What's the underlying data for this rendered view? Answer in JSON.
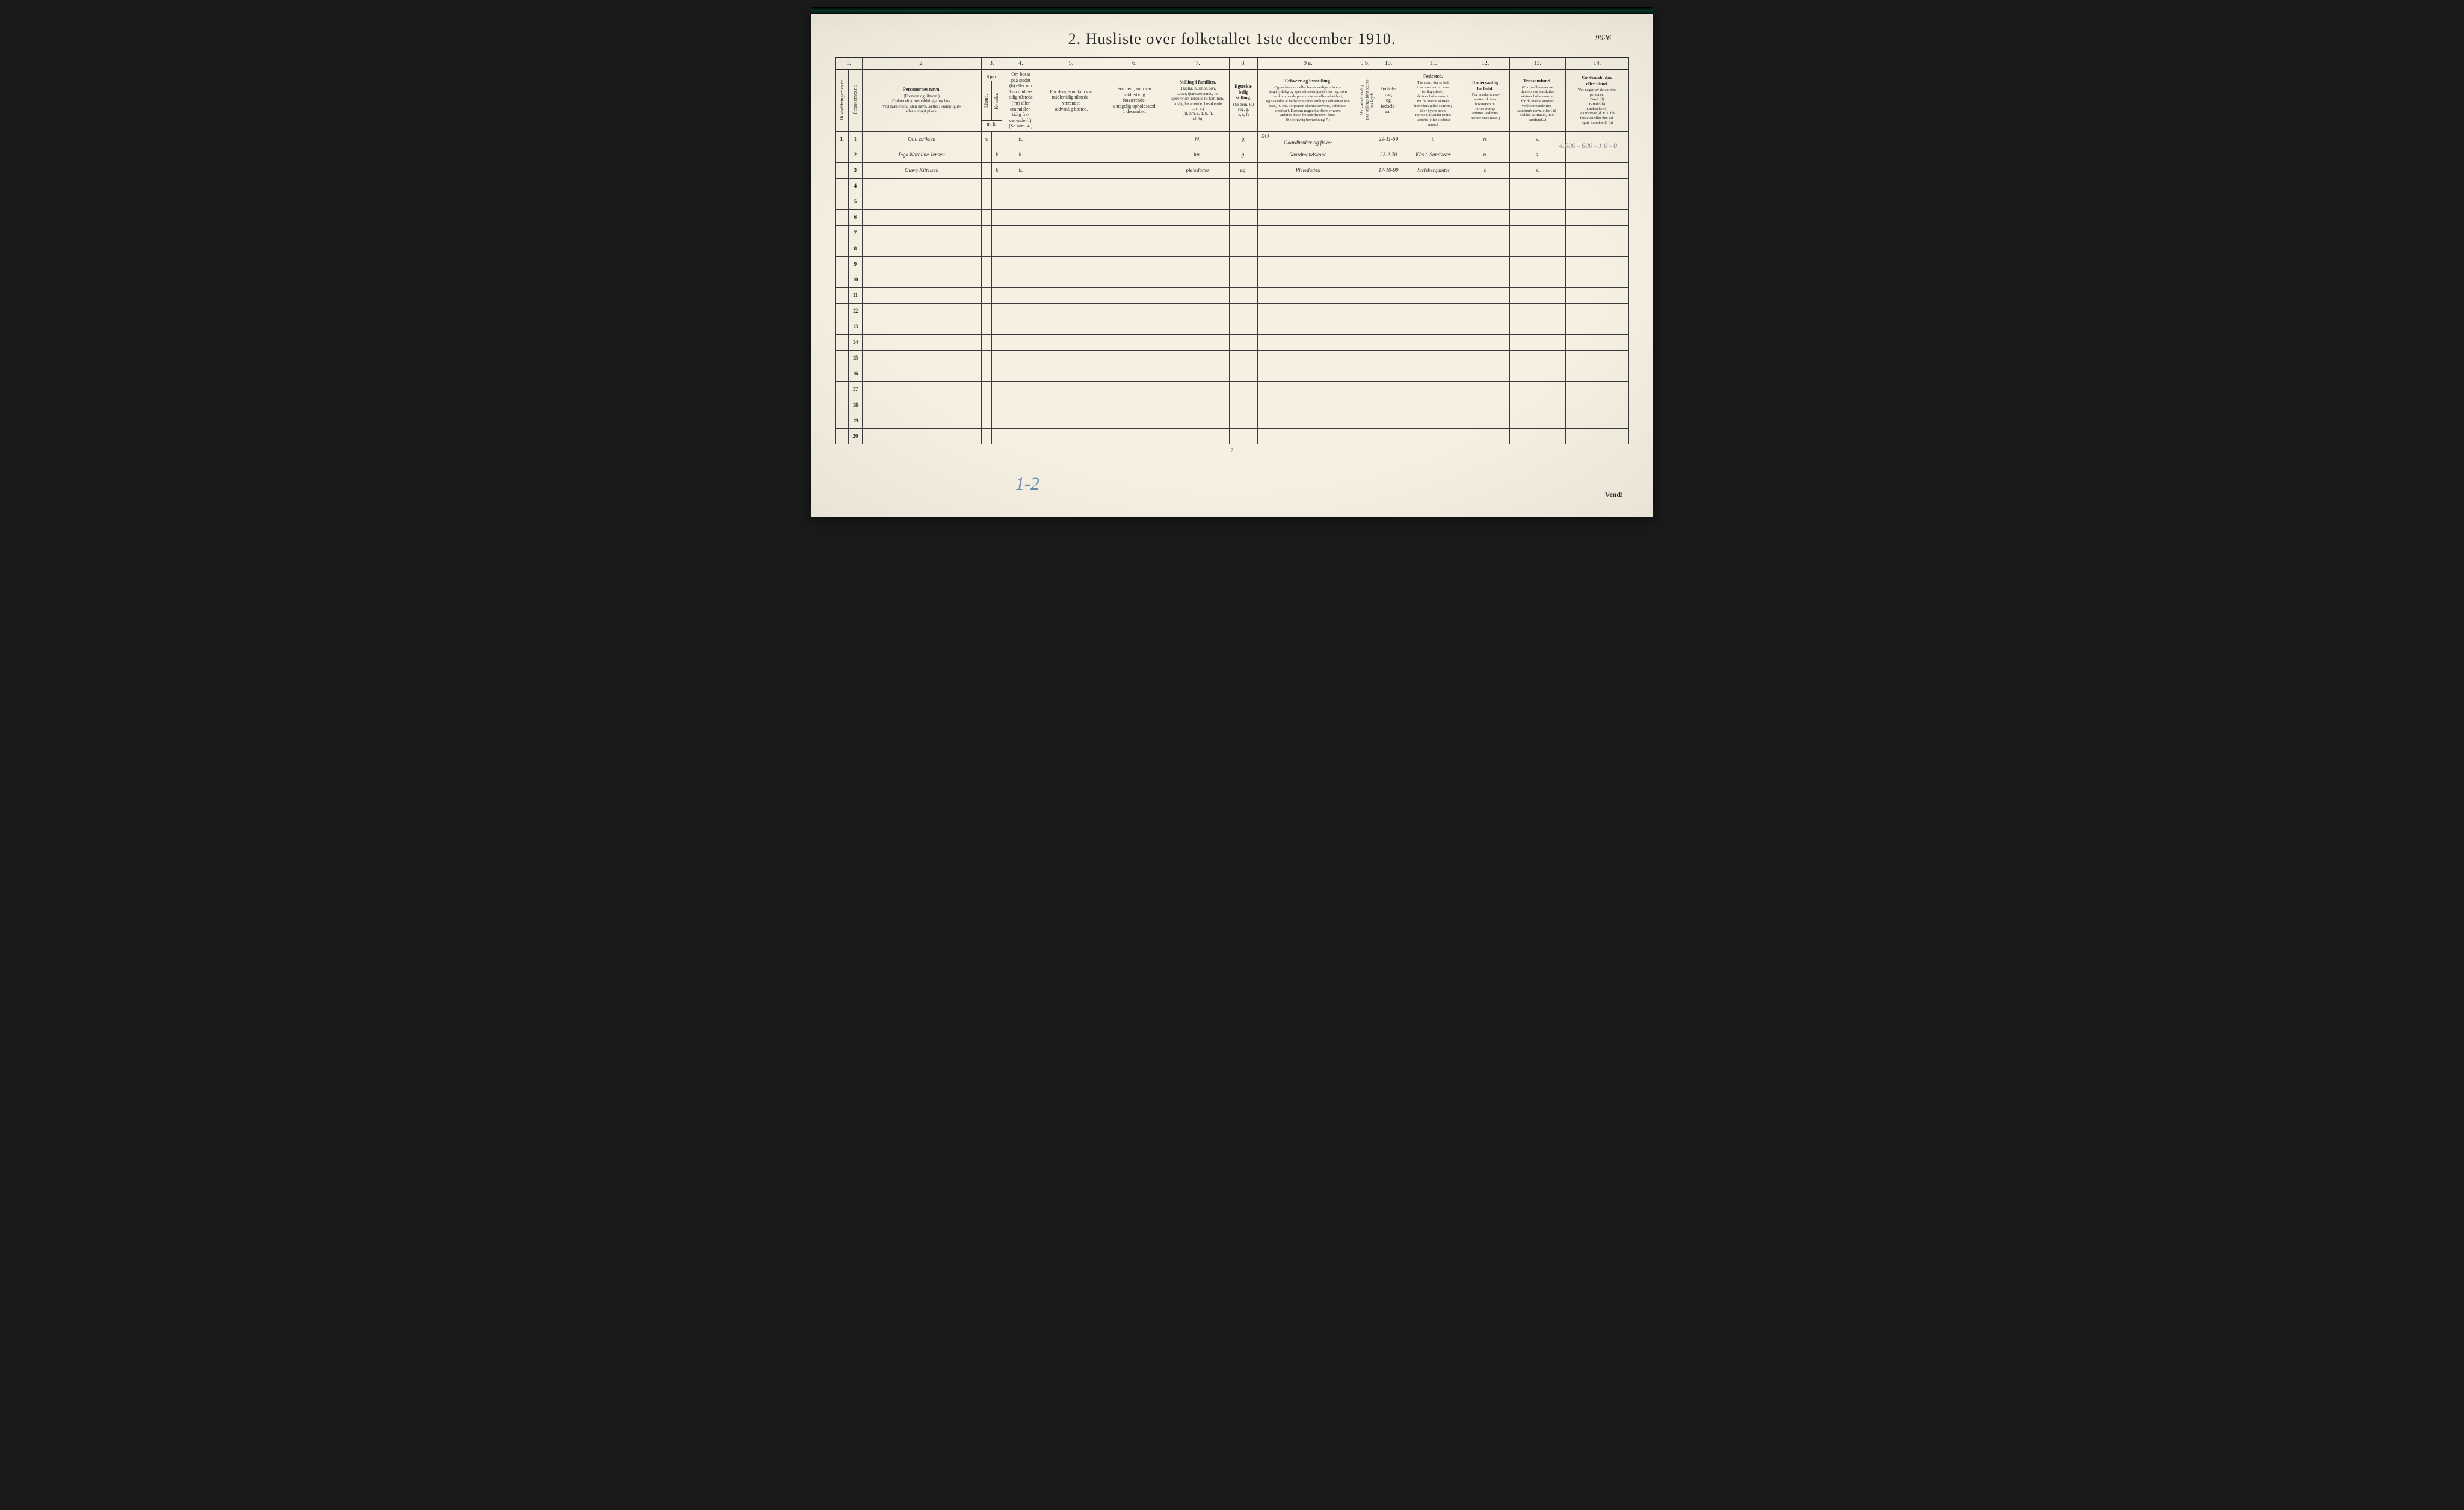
{
  "page_number_tr": "9026",
  "title": "2.  Husliste over folketallet 1ste december 1910.",
  "footer_page": "2",
  "vend": "Vend!",
  "blue_mark": "1-2",
  "pencil_annotation": "4.000 - 600 - 1\n0 - 0",
  "column_numbers": [
    "1.",
    "2.",
    "3.",
    "4.",
    "5.",
    "6.",
    "7.",
    "8.",
    "9 a.",
    "9 b.",
    "10.",
    "11.",
    "12.",
    "13.",
    "14."
  ],
  "headers": {
    "c1a": "Husholdningernes nr.",
    "c1b": "Personernes nr.",
    "c2_main": "Personernes navn.",
    "c2_sub": "(Fornavn og tilnavn.)\nOrdnet efter husholdninger og hus.\nVed barn endnu uten navn, sættes: «udøpt gut»\neller «udøpt pike».",
    "c3_main": "Kjøn.",
    "c3a": "Mænd.",
    "c3b": "Kvinder.",
    "c3_sub": "m. k.",
    "c4": "Om bosat\npaa stedet\n(b) eller om\nkun midler-\ntidig tilstede\n(mt) eller\nom midler-\ntidig fra-\nværende (f).\n(Se bem. 4.)",
    "c5": "For dem, som kun var\nmidlertidig tilstede-\nværende:\nsedvanlig bosted.",
    "c6": "For dem, som var\nmidlertidig\nfraværende:\nantagelig opholdssted\n1 december.",
    "c7_main": "Stilling i familien.",
    "c7_sub": "(Husfar, husmor, søn,\ndatter, tjenestetyende, lo-\nsjererende hørende til familien,\nenslig losjerende, besøkende\no. s. v.)\n(hf, hm, s, d, tj, fl,\nel, b)",
    "c8_main": "Egteska-\nbelig\nstilling.",
    "c8_sub": "(Se bem. 6.)\n(ug, g,\ne, s, f)",
    "c9a_main": "Erhverv og livsstilling.",
    "c9a_sub": "Ogsaa husmors eller barns særlige erhverv.\nAngi tydelig og specielt næringsvei eller fag, som\nvedkommende person utøver eller arbeider i,\nog saaledes at vedkommendes stilling i erhvervet kan\nsees, (f. eks. forpagter, skomakersvend, cellulose-\narbeider). Dersom nogen har flere erhverv,\nanføres disse, hovederhvervet først.\n(Se forøvrig bemerkning 7.)",
    "c9b": "Hvis arbeidsledig\npaa tællingstiden sættes\nher kryds.",
    "c10": "Fødsels-\ndag\nog\nfødsels-\naar.",
    "c11_main": "Fødested.",
    "c11_sub": "(For dem, der er født\ni samme herred som\ntællingsstedet,\nskrives bokstaven: t;\nfor de øvrige skrives\nherredets (eller sognets)\neller byens navn.\nFor de i utlandet fødte:\nlandets (eller stedets)\nnavn.)",
    "c12_main": "Undersaatlig\nforhold.",
    "c12_sub": "(For norske under-\nsaatter skrives\nbokstaven: n;\nfor de øvrige\nanføres vedkom-\nmende stats navn.)",
    "c13_main": "Trossamfund.",
    "c13_sub": "(For medlemmer av\nden norske statskirke\nskrives bokstaven: s;\nfor de øvrige anføres\nvedkommende tros-\nsamfunds navn, eller i til-\nfælde: «Uttraadt, intet\nsamfund».)",
    "c14_main": "Sindssvak, døv\neller blind.",
    "c14_sub": "Var nogen av de anførte\npersoner:\nDøv?        (d)\nBlind?      (b)\nSindssyk?  (s)\nAandssvak (d. v. s. fra\nfødselen eller den tid-\nligste barndom)?  (a)"
  },
  "rows": [
    {
      "hnr": "1.",
      "pnr": "1",
      "name": "Otto Eriksen",
      "sex_m": "m",
      "sex_k": "",
      "bosat": "b.",
      "c5": "",
      "c6": "",
      "stilling": "hf.",
      "egte": "g.",
      "erhverv": "Gaardbruker og fisker",
      "xo": "XO",
      "fdate": "29-11-59",
      "fsted": "t.",
      "under": "n.",
      "tro": "s.",
      "c14": ""
    },
    {
      "hnr": "",
      "pnr": "2",
      "name": "Inga Karoline Jensen",
      "sex_m": "",
      "sex_k": "k",
      "bosat": "b.",
      "c5": "",
      "c6": "",
      "stilling": "hm.",
      "egte": "g.",
      "erhverv": "Gaardmandskone.",
      "xo": "",
      "fdate": "22-2-70",
      "fsted": "Kås t. Sandsvær",
      "under": "n.",
      "tro": "s.",
      "c14": ""
    },
    {
      "hnr": "",
      "pnr": "3",
      "name": "Olava Kittelsen",
      "sex_m": "",
      "sex_k": "k",
      "bosat": "b.",
      "c5": "",
      "c6": "",
      "stilling": "pleiedatter",
      "egte": "ug.",
      "erhverv": "Pleiedatter.",
      "xo": "",
      "fdate": "17-10-99",
      "fsted": "Jarlsbergamtet",
      "under": "n",
      "tro": "s.",
      "c14": ""
    },
    {
      "hnr": "",
      "pnr": "4",
      "name": "",
      "sex_m": "",
      "sex_k": "",
      "bosat": "",
      "c5": "",
      "c6": "",
      "stilling": "",
      "egte": "",
      "erhverv": "",
      "xo": "",
      "fdate": "",
      "fsted": "",
      "under": "",
      "tro": "",
      "c14": ""
    },
    {
      "hnr": "",
      "pnr": "5",
      "name": "",
      "sex_m": "",
      "sex_k": "",
      "bosat": "",
      "c5": "",
      "c6": "",
      "stilling": "",
      "egte": "",
      "erhverv": "",
      "xo": "",
      "fdate": "",
      "fsted": "",
      "under": "",
      "tro": "",
      "c14": ""
    },
    {
      "hnr": "",
      "pnr": "6",
      "name": "",
      "sex_m": "",
      "sex_k": "",
      "bosat": "",
      "c5": "",
      "c6": "",
      "stilling": "",
      "egte": "",
      "erhverv": "",
      "xo": "",
      "fdate": "",
      "fsted": "",
      "under": "",
      "tro": "",
      "c14": ""
    },
    {
      "hnr": "",
      "pnr": "7",
      "name": "",
      "sex_m": "",
      "sex_k": "",
      "bosat": "",
      "c5": "",
      "c6": "",
      "stilling": "",
      "egte": "",
      "erhverv": "",
      "xo": "",
      "fdate": "",
      "fsted": "",
      "under": "",
      "tro": "",
      "c14": ""
    },
    {
      "hnr": "",
      "pnr": "8",
      "name": "",
      "sex_m": "",
      "sex_k": "",
      "bosat": "",
      "c5": "",
      "c6": "",
      "stilling": "",
      "egte": "",
      "erhverv": "",
      "xo": "",
      "fdate": "",
      "fsted": "",
      "under": "",
      "tro": "",
      "c14": ""
    },
    {
      "hnr": "",
      "pnr": "9",
      "name": "",
      "sex_m": "",
      "sex_k": "",
      "bosat": "",
      "c5": "",
      "c6": "",
      "stilling": "",
      "egte": "",
      "erhverv": "",
      "xo": "",
      "fdate": "",
      "fsted": "",
      "under": "",
      "tro": "",
      "c14": ""
    },
    {
      "hnr": "",
      "pnr": "10",
      "name": "",
      "sex_m": "",
      "sex_k": "",
      "bosat": "",
      "c5": "",
      "c6": "",
      "stilling": "",
      "egte": "",
      "erhverv": "",
      "xo": "",
      "fdate": "",
      "fsted": "",
      "under": "",
      "tro": "",
      "c14": ""
    },
    {
      "hnr": "",
      "pnr": "11",
      "name": "",
      "sex_m": "",
      "sex_k": "",
      "bosat": "",
      "c5": "",
      "c6": "",
      "stilling": "",
      "egte": "",
      "erhverv": "",
      "xo": "",
      "fdate": "",
      "fsted": "",
      "under": "",
      "tro": "",
      "c14": ""
    },
    {
      "hnr": "",
      "pnr": "12",
      "name": "",
      "sex_m": "",
      "sex_k": "",
      "bosat": "",
      "c5": "",
      "c6": "",
      "stilling": "",
      "egte": "",
      "erhverv": "",
      "xo": "",
      "fdate": "",
      "fsted": "",
      "under": "",
      "tro": "",
      "c14": ""
    },
    {
      "hnr": "",
      "pnr": "13",
      "name": "",
      "sex_m": "",
      "sex_k": "",
      "bosat": "",
      "c5": "",
      "c6": "",
      "stilling": "",
      "egte": "",
      "erhverv": "",
      "xo": "",
      "fdate": "",
      "fsted": "",
      "under": "",
      "tro": "",
      "c14": ""
    },
    {
      "hnr": "",
      "pnr": "14",
      "name": "",
      "sex_m": "",
      "sex_k": "",
      "bosat": "",
      "c5": "",
      "c6": "",
      "stilling": "",
      "egte": "",
      "erhverv": "",
      "xo": "",
      "fdate": "",
      "fsted": "",
      "under": "",
      "tro": "",
      "c14": ""
    },
    {
      "hnr": "",
      "pnr": "15",
      "name": "",
      "sex_m": "",
      "sex_k": "",
      "bosat": "",
      "c5": "",
      "c6": "",
      "stilling": "",
      "egte": "",
      "erhverv": "",
      "xo": "",
      "fdate": "",
      "fsted": "",
      "under": "",
      "tro": "",
      "c14": ""
    },
    {
      "hnr": "",
      "pnr": "16",
      "name": "",
      "sex_m": "",
      "sex_k": "",
      "bosat": "",
      "c5": "",
      "c6": "",
      "stilling": "",
      "egte": "",
      "erhverv": "",
      "xo": "",
      "fdate": "",
      "fsted": "",
      "under": "",
      "tro": "",
      "c14": ""
    },
    {
      "hnr": "",
      "pnr": "17",
      "name": "",
      "sex_m": "",
      "sex_k": "",
      "bosat": "",
      "c5": "",
      "c6": "",
      "stilling": "",
      "egte": "",
      "erhverv": "",
      "xo": "",
      "fdate": "",
      "fsted": "",
      "under": "",
      "tro": "",
      "c14": ""
    },
    {
      "hnr": "",
      "pnr": "18",
      "name": "",
      "sex_m": "",
      "sex_k": "",
      "bosat": "",
      "c5": "",
      "c6": "",
      "stilling": "",
      "egte": "",
      "erhverv": "",
      "xo": "",
      "fdate": "",
      "fsted": "",
      "under": "",
      "tro": "",
      "c14": ""
    },
    {
      "hnr": "",
      "pnr": "19",
      "name": "",
      "sex_m": "",
      "sex_k": "",
      "bosat": "",
      "c5": "",
      "c6": "",
      "stilling": "",
      "egte": "",
      "erhverv": "",
      "xo": "",
      "fdate": "",
      "fsted": "",
      "under": "",
      "tro": "",
      "c14": ""
    },
    {
      "hnr": "",
      "pnr": "20",
      "name": "",
      "sex_m": "",
      "sex_k": "",
      "bosat": "",
      "c5": "",
      "c6": "",
      "stilling": "",
      "egte": "",
      "erhverv": "",
      "xo": "",
      "fdate": "",
      "fsted": "",
      "under": "",
      "tro": "",
      "c14": ""
    }
  ],
  "colors": {
    "paper": "#f5f0e1",
    "ink_print": "#2a2a2a",
    "ink_hand": "#3a3020",
    "border": "#3a3a3a",
    "blue_pencil": "#6a8aaa",
    "pencil": "#888888"
  },
  "column_widths_pct": [
    2,
    2,
    17,
    1.5,
    1.5,
    5.5,
    9,
    9,
    9,
    4,
    14,
    2,
    5,
    8,
    7,
    8,
    9
  ]
}
